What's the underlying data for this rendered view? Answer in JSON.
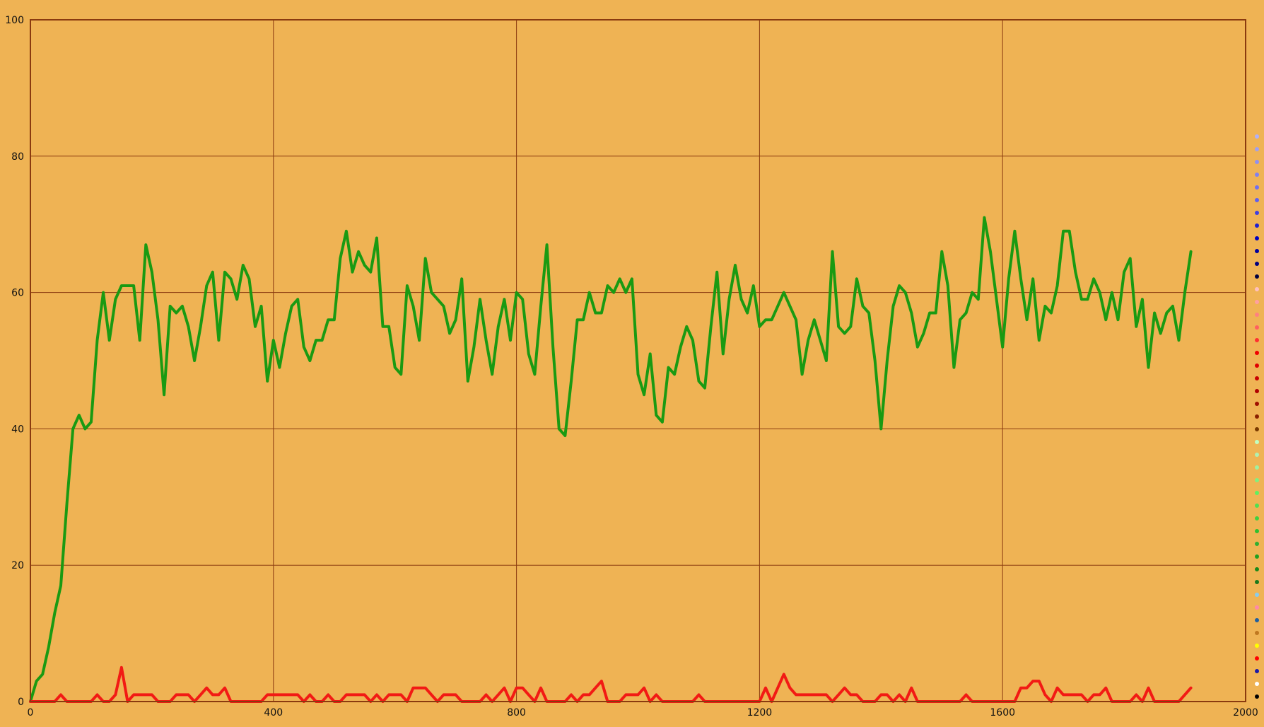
{
  "chart_data": {
    "type": "line",
    "title": "",
    "xlabel": "",
    "ylabel": "",
    "xlim": [
      0,
      2000
    ],
    "ylim": [
      0,
      100
    ],
    "x_ticks": [
      "0",
      "400",
      "800",
      "1200",
      "1600",
      "2000"
    ],
    "y_ticks": [
      "0",
      "20",
      "40",
      "60",
      "80",
      "100"
    ],
    "grid": true,
    "colors": {
      "background": "#efb354",
      "grid": "#8a3a0f",
      "frame": "#8a3a0f"
    },
    "series": [
      {
        "color": "#1a9a12",
        "x": [
          0,
          10,
          20,
          30,
          40,
          50,
          60,
          70,
          80,
          90,
          100,
          110,
          120,
          130,
          140,
          150,
          160,
          170,
          180,
          190,
          200,
          210,
          220,
          230,
          240,
          250,
          260,
          270,
          280,
          290,
          300,
          310,
          320,
          330,
          340,
          350,
          360,
          370,
          380,
          390,
          400,
          410,
          420,
          430,
          440,
          450,
          460,
          470,
          480,
          490,
          500,
          510,
          520,
          530,
          540,
          550,
          560,
          570,
          580,
          590,
          600,
          610,
          620,
          630,
          640,
          650,
          660,
          670,
          680,
          690,
          700,
          710,
          720,
          730,
          740,
          750,
          760,
          770,
          780,
          790,
          800,
          810,
          820,
          830,
          840,
          850,
          860,
          870,
          880,
          890,
          900,
          910,
          920,
          930,
          940,
          950,
          960,
          970,
          980,
          990,
          1000,
          1010,
          1020,
          1030,
          1040,
          1050,
          1060,
          1070,
          1080,
          1090,
          1100,
          1110,
          1120,
          1130,
          1140,
          1150,
          1160,
          1170,
          1180,
          1190,
          1200,
          1210,
          1220,
          1230,
          1240,
          1250,
          1260,
          1270,
          1280,
          1290,
          1300,
          1310,
          1320,
          1330,
          1340,
          1350,
          1360,
          1370,
          1380,
          1390,
          1400,
          1410,
          1420,
          1430,
          1440,
          1450,
          1460,
          1470,
          1480,
          1490,
          1500,
          1510,
          1520,
          1530,
          1540,
          1550,
          1560,
          1570,
          1580,
          1590,
          1600,
          1610,
          1620,
          1630,
          1640,
          1650,
          1660,
          1670,
          1680,
          1690,
          1700,
          1710,
          1720,
          1730,
          1740,
          1750,
          1760,
          1770,
          1780,
          1790,
          1800,
          1810,
          1820,
          1830,
          1840,
          1850,
          1860,
          1870,
          1880,
          1890,
          1900,
          1910
        ],
        "y": [
          0,
          3,
          4,
          8,
          13,
          17,
          29,
          40,
          42,
          40,
          41,
          53,
          60,
          53,
          59,
          61,
          61,
          61,
          53,
          67,
          63,
          56,
          45,
          58,
          57,
          58,
          55,
          50,
          55,
          61,
          63,
          53,
          63,
          62,
          59,
          64,
          62,
          55,
          58,
          47,
          53,
          49,
          54,
          58,
          59,
          52,
          50,
          53,
          53,
          56,
          56,
          65,
          69,
          63,
          66,
          64,
          63,
          68,
          55,
          55,
          49,
          48,
          61,
          58,
          53,
          65,
          60,
          59,
          58,
          54,
          56,
          62,
          47,
          52,
          59,
          53,
          48,
          55,
          59,
          53,
          60,
          59,
          51,
          48,
          58,
          67,
          52,
          40,
          39,
          47,
          56,
          56,
          60,
          57,
          57,
          61,
          60,
          62,
          60,
          62,
          48,
          45,
          51,
          42,
          41,
          49,
          48,
          52,
          55,
          53,
          47,
          46,
          55,
          63,
          51,
          59,
          64,
          59,
          57,
          61,
          55,
          56,
          56,
          58,
          60,
          58,
          56,
          48,
          53,
          56,
          53,
          50,
          66,
          55,
          54,
          55,
          62,
          58,
          57,
          50,
          40,
          50,
          58,
          61,
          60,
          57,
          52,
          54,
          57,
          57,
          66,
          61,
          49,
          56,
          57,
          60,
          59,
          71,
          66,
          59,
          52,
          62,
          69,
          62,
          56,
          62,
          53,
          58,
          57,
          61,
          69,
          69,
          63,
          59,
          59,
          62,
          60,
          56,
          60,
          56,
          63,
          65,
          55,
          59,
          49,
          57,
          54,
          57,
          58,
          53,
          60,
          66
        ]
      },
      {
        "color": "#f21a14",
        "x": [
          0,
          10,
          20,
          30,
          40,
          50,
          60,
          70,
          80,
          90,
          100,
          110,
          120,
          130,
          140,
          150,
          160,
          170,
          180,
          190,
          200,
          210,
          220,
          230,
          240,
          250,
          260,
          270,
          280,
          290,
          300,
          310,
          320,
          330,
          340,
          350,
          360,
          370,
          380,
          390,
          400,
          410,
          420,
          430,
          440,
          450,
          460,
          470,
          480,
          490,
          500,
          510,
          520,
          530,
          540,
          550,
          560,
          570,
          580,
          590,
          600,
          610,
          620,
          630,
          640,
          650,
          660,
          670,
          680,
          690,
          700,
          710,
          720,
          730,
          740,
          750,
          760,
          770,
          780,
          790,
          800,
          810,
          820,
          830,
          840,
          850,
          860,
          870,
          880,
          890,
          900,
          910,
          920,
          930,
          940,
          950,
          960,
          970,
          980,
          990,
          1000,
          1010,
          1020,
          1030,
          1040,
          1050,
          1060,
          1070,
          1080,
          1090,
          1100,
          1110,
          1120,
          1130,
          1140,
          1150,
          1160,
          1170,
          1180,
          1190,
          1200,
          1210,
          1220,
          1230,
          1240,
          1250,
          1260,
          1270,
          1280,
          1290,
          1300,
          1310,
          1320,
          1330,
          1340,
          1350,
          1360,
          1370,
          1380,
          1390,
          1400,
          1410,
          1420,
          1430,
          1440,
          1450,
          1460,
          1470,
          1480,
          1490,
          1500,
          1510,
          1520,
          1530,
          1540,
          1550,
          1560,
          1570,
          1580,
          1590,
          1600,
          1610,
          1620,
          1630,
          1640,
          1650,
          1660,
          1670,
          1680,
          1690,
          1700,
          1710,
          1720,
          1730,
          1740,
          1750,
          1760,
          1770,
          1780,
          1790,
          1800,
          1810,
          1820,
          1830,
          1840,
          1850,
          1860,
          1870,
          1880,
          1890,
          1900,
          1910
        ],
        "y": [
          0,
          0,
          0,
          0,
          0,
          1,
          0,
          0,
          0,
          0,
          0,
          1,
          0,
          0,
          1,
          5,
          0,
          1,
          1,
          1,
          1,
          0,
          0,
          0,
          1,
          1,
          1,
          0,
          1,
          2,
          1,
          1,
          2,
          0,
          0,
          0,
          0,
          0,
          0,
          1,
          1,
          1,
          1,
          1,
          1,
          0,
          1,
          0,
          0,
          1,
          0,
          0,
          1,
          1,
          1,
          1,
          0,
          1,
          0,
          1,
          1,
          1,
          0,
          2,
          2,
          2,
          1,
          0,
          1,
          1,
          1,
          0,
          0,
          0,
          0,
          1,
          0,
          1,
          2,
          0,
          2,
          2,
          1,
          0,
          2,
          0,
          0,
          0,
          0,
          1,
          0,
          1,
          1,
          2,
          3,
          0,
          0,
          0,
          1,
          1,
          1,
          2,
          0,
          1,
          0,
          0,
          0,
          0,
          0,
          0,
          1,
          0,
          0,
          0,
          0,
          0,
          0,
          0,
          0,
          0,
          0,
          2,
          0,
          2,
          4,
          2,
          1,
          1,
          1,
          1,
          1,
          1,
          0,
          1,
          2,
          1,
          1,
          0,
          0,
          0,
          1,
          1,
          0,
          1,
          0,
          2,
          0,
          0,
          0,
          0,
          0,
          0,
          0,
          0,
          1,
          0,
          0,
          0,
          0,
          0,
          0,
          0,
          0,
          2,
          2,
          3,
          3,
          1,
          0,
          2,
          1,
          1,
          1,
          1,
          0,
          1,
          1,
          2,
          0,
          0,
          0,
          0,
          1,
          0,
          2,
          0,
          0,
          0,
          0,
          0,
          1,
          2
        ]
      }
    ],
    "legend": {
      "placement": "right",
      "swatches": [
        "#000000",
        "#ffffff",
        "#1a1aa8",
        "#ff0000",
        "#ffff00",
        "#c07820",
        "#2060a0",
        "#ff88aa",
        "#88ccee",
        "#1a7a1a",
        "#1a8a1a",
        "#20a020",
        "#30b030",
        "#30c030",
        "#40d040",
        "#50e050",
        "#60f060",
        "#80f080",
        "#a0f0a0",
        "#b0f0b0",
        "#c0ffc0",
        "#7a3a00",
        "#8a2000",
        "#a01000",
        "#b00000",
        "#c80000",
        "#e00000",
        "#f00000",
        "#ff3030",
        "#ff6060",
        "#ff8080",
        "#ffa0a0",
        "#ffc0c0",
        "#000040",
        "#000080",
        "#0000a0",
        "#0000c0",
        "#2020d0",
        "#4040e0",
        "#6060f0",
        "#7070f0",
        "#8080f0",
        "#9090f0",
        "#a0a0f0",
        "#b0b0f8"
      ]
    }
  }
}
